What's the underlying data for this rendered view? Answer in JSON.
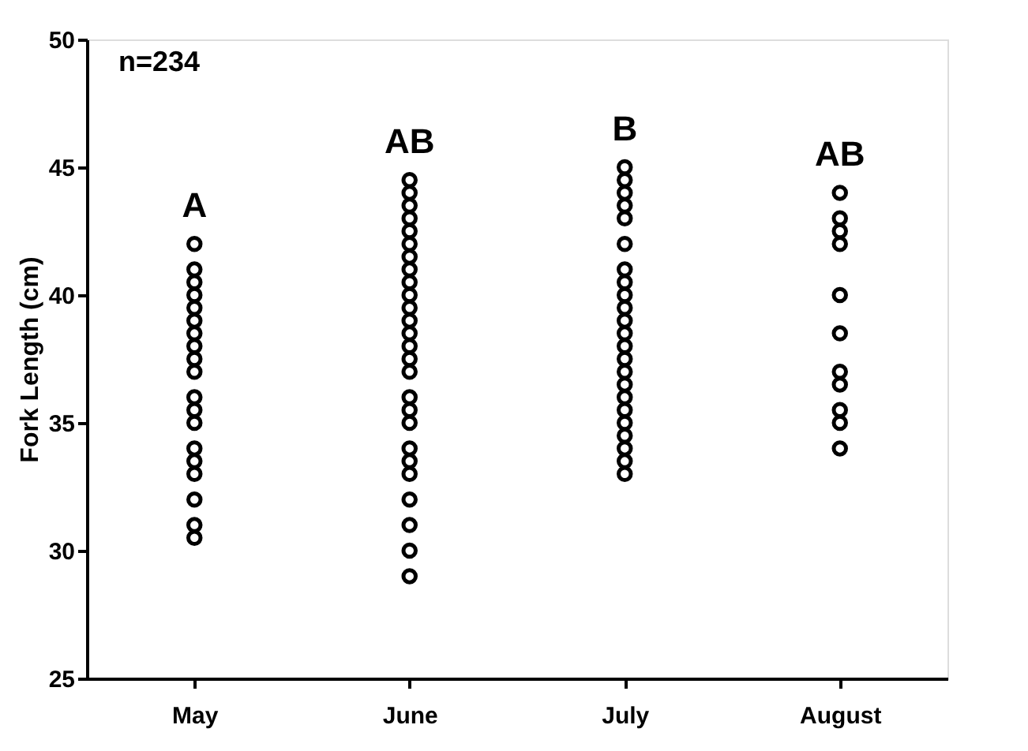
{
  "chart_data": {
    "type": "scatter",
    "ylabel": "Fork Length (cm)",
    "categories": [
      "May",
      "June",
      "July",
      "August"
    ],
    "ylim": [
      25,
      50
    ],
    "yticks": [
      25,
      30,
      35,
      40,
      45,
      50
    ],
    "grid": false,
    "marker": "circle",
    "series": [
      {
        "color": "#000000",
        "x": [
          "May",
          "May",
          "May",
          "May",
          "May",
          "May",
          "May",
          "May",
          "May",
          "May",
          "May",
          "May",
          "May",
          "May",
          "May",
          "May",
          "May",
          "May",
          "May"
        ],
        "values": [
          42,
          41,
          40.5,
          40,
          39.5,
          39,
          38.5,
          38,
          37.5,
          37,
          36,
          35.5,
          35,
          34,
          33.5,
          33,
          32,
          31,
          30.5
        ]
      },
      {
        "color": "#000000",
        "x": [
          "June",
          "June",
          "June",
          "June",
          "June",
          "June",
          "June",
          "June",
          "June",
          "June",
          "June",
          "June",
          "June",
          "June",
          "June",
          "June",
          "June",
          "June",
          "June",
          "June",
          "June",
          "June",
          "June",
          "June",
          "June",
          "June"
        ],
        "values": [
          44.5,
          44,
          43.5,
          43,
          42.5,
          42,
          41.5,
          41,
          40.5,
          40,
          39.5,
          39,
          38.5,
          38,
          37.5,
          37,
          36,
          35.5,
          35,
          34,
          33.5,
          33,
          32,
          31,
          30,
          29
        ]
      },
      {
        "color": "#000000",
        "x": [
          "July",
          "July",
          "July",
          "July",
          "July",
          "July",
          "July",
          "July",
          "July",
          "July",
          "July",
          "July",
          "July",
          "July",
          "July",
          "July",
          "July",
          "July",
          "July",
          "July",
          "July",
          "July",
          "July"
        ],
        "values": [
          45,
          44.5,
          44,
          43.5,
          43,
          42,
          41,
          40.5,
          40,
          39.5,
          39,
          38.5,
          38,
          37.5,
          37,
          36.5,
          36,
          35.5,
          35,
          34.5,
          34,
          33.5,
          33
        ]
      },
      {
        "color": "#000000",
        "x": [
          "August",
          "August",
          "August",
          "August",
          "August",
          "August",
          "August",
          "August",
          "August",
          "August",
          "August"
        ],
        "values": [
          44,
          43,
          42.5,
          42,
          40,
          38.5,
          37,
          36.5,
          35.5,
          35,
          34
        ]
      }
    ],
    "annotations": [
      "n=234",
      "A",
      "AB",
      "B",
      "AB"
    ]
  }
}
